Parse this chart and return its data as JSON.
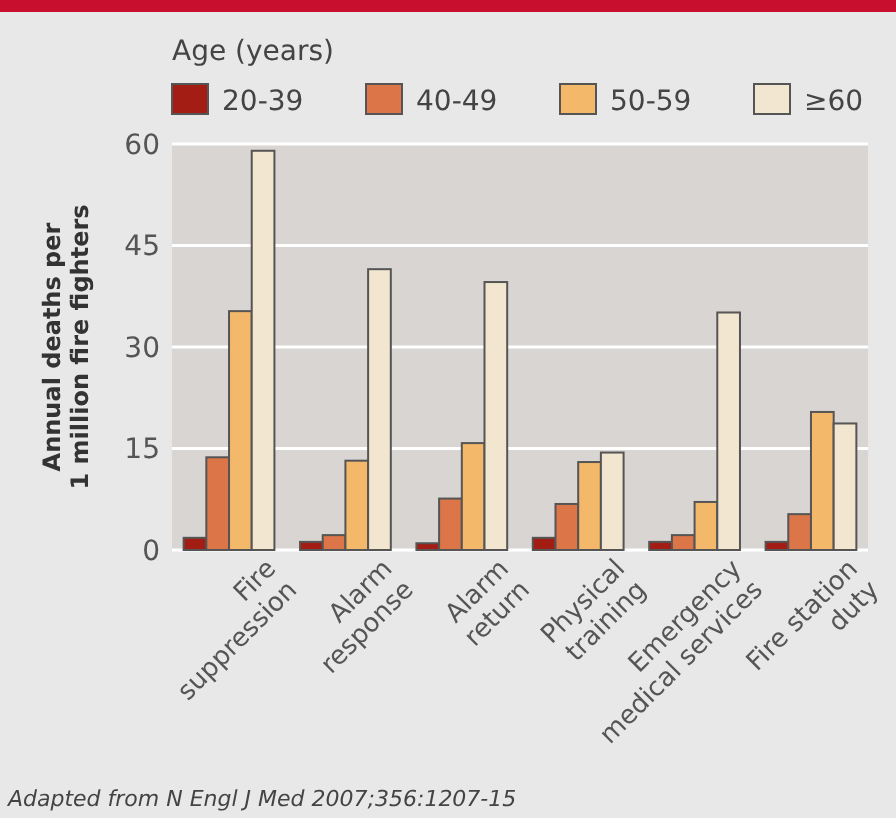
{
  "chart_data": {
    "type": "bar",
    "legend_title": "Age (years)",
    "ylabel": "Annual deaths per\n1 million fire fighters",
    "annotations": [
      "Adapted from N Engl J Med  2007;356:1207-15"
    ],
    "categories": [
      "Fire\nsuppression",
      "Alarm\nresponse",
      "Alarm\nreturn",
      "Physical\ntraining",
      "Emergency\nmedical services",
      "Fire station\nduty"
    ],
    "series": [
      {
        "name": "20-39",
        "color": "#a31d14",
        "values": [
          1.8,
          1.2,
          1.0,
          1.8,
          1.2,
          1.2
        ]
      },
      {
        "name": "40-49",
        "color": "#dc7649",
        "values": [
          13.7,
          2.2,
          7.6,
          6.8,
          2.2,
          5.3
        ]
      },
      {
        "name": "50-59",
        "color": "#f3b86a",
        "values": [
          35.3,
          13.2,
          15.8,
          13.0,
          7.1,
          20.4
        ]
      },
      {
        "name": "≥60",
        "color": "#f3e6d0",
        "values": [
          59,
          41.5,
          39.6,
          14.4,
          35.1,
          18.7
        ]
      }
    ],
    "ylim": [
      0,
      60
    ],
    "yticks": [
      0,
      15,
      30,
      45,
      60
    ],
    "grid": "y",
    "legend": "top"
  }
}
